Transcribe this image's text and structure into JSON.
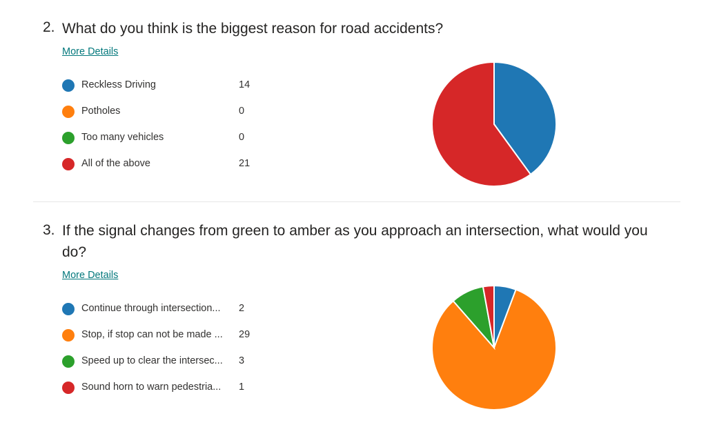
{
  "more_details_label": "More Details",
  "questions": [
    {
      "number": "2.",
      "title": "What do you think is the biggest reason for road accidents?",
      "options": [
        {
          "label": "Reckless Driving",
          "count": "14",
          "color": "#1f77b4"
        },
        {
          "label": "Potholes",
          "count": "0",
          "color": "#ff7f0e"
        },
        {
          "label": "Too many vehicles",
          "count": "0",
          "color": "#2ca02c"
        },
        {
          "label": "All of the above",
          "count": "21",
          "color": "#d62728"
        }
      ]
    },
    {
      "number": "3.",
      "title": "If the signal changes from green to amber as you approach an intersection, what would you do?",
      "options": [
        {
          "label": "Continue through intersection...",
          "count": "2",
          "color": "#1f77b4"
        },
        {
          "label": "Stop, if stop can not be made ...",
          "count": "29",
          "color": "#ff7f0e"
        },
        {
          "label": "Speed up to clear the intersec...",
          "count": "3",
          "color": "#2ca02c"
        },
        {
          "label": "Sound horn to warn pedestria...",
          "count": "1",
          "color": "#d62728"
        }
      ]
    }
  ],
  "chart_data": [
    {
      "type": "pie",
      "categories": [
        "Reckless Driving",
        "Potholes",
        "Too many vehicles",
        "All of the above"
      ],
      "values": [
        14,
        0,
        0,
        21
      ],
      "colors": [
        "#1f77b4",
        "#ff7f0e",
        "#2ca02c",
        "#d62728"
      ]
    },
    {
      "type": "pie",
      "categories": [
        "Continue through intersection...",
        "Stop, if stop can not be made ...",
        "Speed up to clear the intersec...",
        "Sound horn to warn pedestria..."
      ],
      "values": [
        2,
        29,
        3,
        1
      ],
      "colors": [
        "#1f77b4",
        "#ff7f0e",
        "#2ca02c",
        "#d62728"
      ]
    }
  ]
}
